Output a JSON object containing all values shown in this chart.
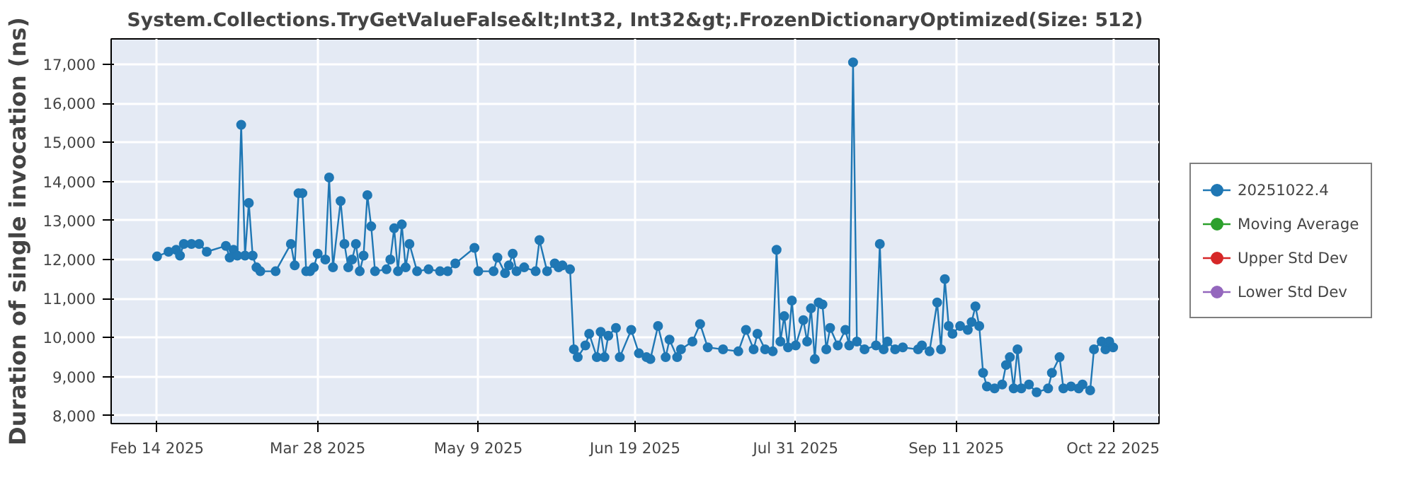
{
  "chart_data": {
    "type": "line",
    "title": "System.Collections.TryGetValueFalse&lt;Int32, Int32&gt;.FrozenDictionaryOptimized(Size: 512)",
    "ylabel": "Duration of single invocation (ns)",
    "xlim": [
      "2025-02-02",
      "2025-11-03"
    ],
    "xticks": [
      {
        "value": "2025-02-14",
        "label": "Feb 14 2025"
      },
      {
        "value": "2025-03-28",
        "label": "Mar 28 2025"
      },
      {
        "value": "2025-05-09",
        "label": "May 9 2025"
      },
      {
        "value": "2025-06-19",
        "label": "Jun 19 2025"
      },
      {
        "value": "2025-07-31",
        "label": "Jul 31 2025"
      },
      {
        "value": "2025-09-11",
        "label": "Sep 11 2025"
      },
      {
        "value": "2025-10-22",
        "label": "Oct 22 2025"
      }
    ],
    "ylim": [
      7800,
      17650
    ],
    "yticks": [
      {
        "value": 8000,
        "label": "8,000"
      },
      {
        "value": 9000,
        "label": "9,000"
      },
      {
        "value": 10000,
        "label": "10,000"
      },
      {
        "value": 11000,
        "label": "11,000"
      },
      {
        "value": 12000,
        "label": "12,000"
      },
      {
        "value": 13000,
        "label": "13,000"
      },
      {
        "value": 14000,
        "label": "14,000"
      },
      {
        "value": 15000,
        "label": "15,000"
      },
      {
        "value": 16000,
        "label": "16,000"
      },
      {
        "value": 17000,
        "label": "17,000"
      }
    ],
    "grid": true,
    "legend": "right",
    "marker": "circle",
    "line_style": "solid",
    "series": [
      {
        "name": "20251022.4",
        "color": "#1f77b4",
        "x": [
          "2025-02-14",
          "2025-02-17",
          "2025-02-19",
          "2025-02-20",
          "2025-02-21",
          "2025-02-23",
          "2025-02-25",
          "2025-02-27",
          "2025-03-04",
          "2025-03-05",
          "2025-03-06",
          "2025-03-07",
          "2025-03-08",
          "2025-03-09",
          "2025-03-10",
          "2025-03-11",
          "2025-03-12",
          "2025-03-13",
          "2025-03-17",
          "2025-03-21",
          "2025-03-22",
          "2025-03-23",
          "2025-03-24",
          "2025-03-25",
          "2025-03-26",
          "2025-03-27",
          "2025-03-28",
          "2025-03-30",
          "2025-03-31",
          "2025-04-01",
          "2025-04-03",
          "2025-04-04",
          "2025-04-05",
          "2025-04-06",
          "2025-04-07",
          "2025-04-08",
          "2025-04-09",
          "2025-04-10",
          "2025-04-11",
          "2025-04-12",
          "2025-04-15",
          "2025-04-16",
          "2025-04-17",
          "2025-04-18",
          "2025-04-19",
          "2025-04-20",
          "2025-04-21",
          "2025-04-23",
          "2025-04-26",
          "2025-04-29",
          "2025-05-01",
          "2025-05-03",
          "2025-05-08",
          "2025-05-09",
          "2025-05-13",
          "2025-05-14",
          "2025-05-16",
          "2025-05-17",
          "2025-05-18",
          "2025-05-19",
          "2025-05-21",
          "2025-05-24",
          "2025-05-25",
          "2025-05-27",
          "2025-05-29",
          "2025-05-30",
          "2025-05-31",
          "2025-06-02",
          "2025-06-03",
          "2025-06-04",
          "2025-06-06",
          "2025-06-07",
          "2025-06-09",
          "2025-06-10",
          "2025-06-11",
          "2025-06-12",
          "2025-06-14",
          "2025-06-15",
          "2025-06-18",
          "2025-06-20",
          "2025-06-22",
          "2025-06-23",
          "2025-06-25",
          "2025-06-27",
          "2025-06-28",
          "2025-06-30",
          "2025-07-01",
          "2025-07-04",
          "2025-07-06",
          "2025-07-08",
          "2025-07-12",
          "2025-07-16",
          "2025-07-18",
          "2025-07-20",
          "2025-07-21",
          "2025-07-23",
          "2025-07-25",
          "2025-07-26",
          "2025-07-27",
          "2025-07-28",
          "2025-07-29",
          "2025-07-30",
          "2025-07-31",
          "2025-08-02",
          "2025-08-03",
          "2025-08-04",
          "2025-08-05",
          "2025-08-06",
          "2025-08-07",
          "2025-08-08",
          "2025-08-09",
          "2025-08-11",
          "2025-08-13",
          "2025-08-14",
          "2025-08-15",
          "2025-08-16",
          "2025-08-18",
          "2025-08-21",
          "2025-08-22",
          "2025-08-23",
          "2025-08-24",
          "2025-08-26",
          "2025-08-28",
          "2025-09-01",
          "2025-09-02",
          "2025-09-04",
          "2025-09-06",
          "2025-09-07",
          "2025-09-08",
          "2025-09-09",
          "2025-09-10",
          "2025-09-12",
          "2025-09-14",
          "2025-09-15",
          "2025-09-16",
          "2025-09-17",
          "2025-09-18",
          "2025-09-19",
          "2025-09-21",
          "2025-09-23",
          "2025-09-24",
          "2025-09-25",
          "2025-09-26",
          "2025-09-27",
          "2025-09-28",
          "2025-09-30",
          "2025-10-02",
          "2025-10-05",
          "2025-10-06",
          "2025-10-08",
          "2025-10-09",
          "2025-10-11",
          "2025-10-13",
          "2025-10-14",
          "2025-10-16",
          "2025-10-17",
          "2025-10-19",
          "2025-10-20",
          "2025-10-21",
          "2025-10-22"
        ],
        "values": [
          12080,
          12200,
          12250,
          12100,
          12400,
          12400,
          12400,
          12200,
          12350,
          12050,
          12250,
          12100,
          15450,
          12100,
          13450,
          12100,
          11800,
          11700,
          11700,
          12400,
          11850,
          13700,
          13700,
          11700,
          11700,
          11800,
          12150,
          12000,
          14100,
          11800,
          13500,
          12400,
          11800,
          12000,
          12400,
          11700,
          12100,
          13650,
          12850,
          11700,
          11750,
          12000,
          12800,
          11700,
          12900,
          11800,
          12400,
          11700,
          11750,
          11700,
          11700,
          11900,
          12300,
          11700,
          11700,
          12050,
          11650,
          11850,
          12150,
          11700,
          11800,
          11700,
          12500,
          11700,
          11900,
          11800,
          11850,
          11750,
          9700,
          9500,
          9800,
          10100,
          9500,
          10150,
          9500,
          10050,
          10250,
          9500,
          10200,
          9600,
          9500,
          9450,
          10300,
          9500,
          9950,
          9500,
          9700,
          9900,
          10350,
          9750,
          9700,
          9650,
          10200,
          9700,
          10100,
          9700,
          9650,
          12250,
          9900,
          10550,
          9750,
          10950,
          9800,
          10450,
          9900,
          10750,
          9450,
          10900,
          10850,
          9700,
          10250,
          9800,
          10200,
          9800,
          17050,
          9900,
          9700,
          9800,
          12400,
          9700,
          9900,
          9700,
          9750,
          9700,
          9800,
          9650,
          10900,
          9700,
          11500,
          10300,
          10100,
          10300,
          10200,
          10400,
          10800,
          10300,
          9100,
          8750,
          8700,
          8800,
          9300,
          9500,
          8700,
          9700,
          8700,
          8800,
          8600,
          8700,
          9100,
          9500,
          8700,
          8750,
          8700,
          8800,
          8650,
          9700,
          9900,
          9700,
          9900,
          9750
        ]
      },
      {
        "name": "Moving Average",
        "color": "#2ca02c"
      },
      {
        "name": "Upper Std Dev",
        "color": "#d62728"
      },
      {
        "name": "Lower Std Dev",
        "color": "#9467bd"
      }
    ]
  }
}
